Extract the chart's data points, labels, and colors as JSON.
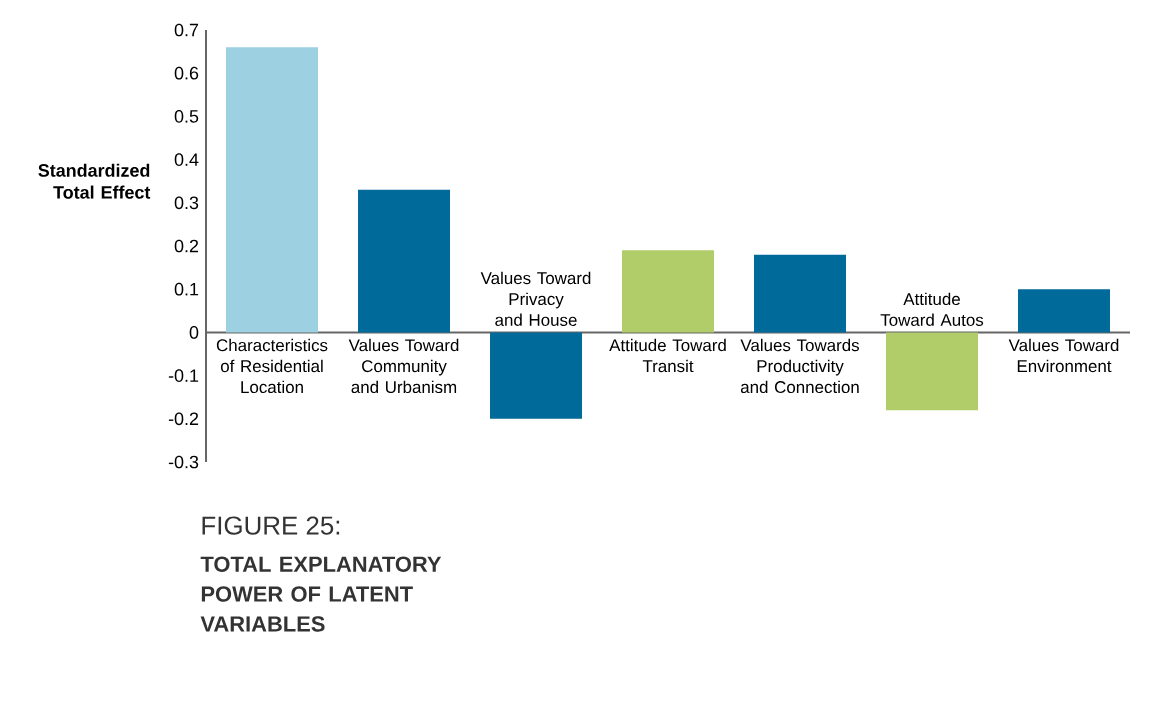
{
  "chart_data": {
    "type": "bar",
    "ylabel": "Standardized Total Effect",
    "categories": [
      "Characteristics of Residential Location",
      "Values Toward Community and Urbanism",
      "Values Toward Privacy and House",
      "Attitude Toward Transit",
      "Values Towards Productivity and Connection",
      "Attitude Toward Autos",
      "Values Toward Environment"
    ],
    "values": [
      0.66,
      0.33,
      -0.2,
      0.19,
      0.18,
      -0.18,
      0.1
    ],
    "colors": [
      "#9dd1e1",
      "#006a9a",
      "#006a9a",
      "#b0cd6a",
      "#006a9a",
      "#b0cd6a",
      "#006a9a"
    ],
    "ylim": [
      -0.3,
      0.7
    ],
    "yticks": [
      -0.3,
      -0.2,
      -0.1,
      0,
      0.1,
      0.2,
      0.3,
      0.4,
      0.5,
      0.6,
      0.7
    ],
    "grid": false,
    "annotations": [
      "FIGURE 25:",
      "TOTAL EXPLANATORY POWER OF LATENT VARIABLES"
    ]
  }
}
